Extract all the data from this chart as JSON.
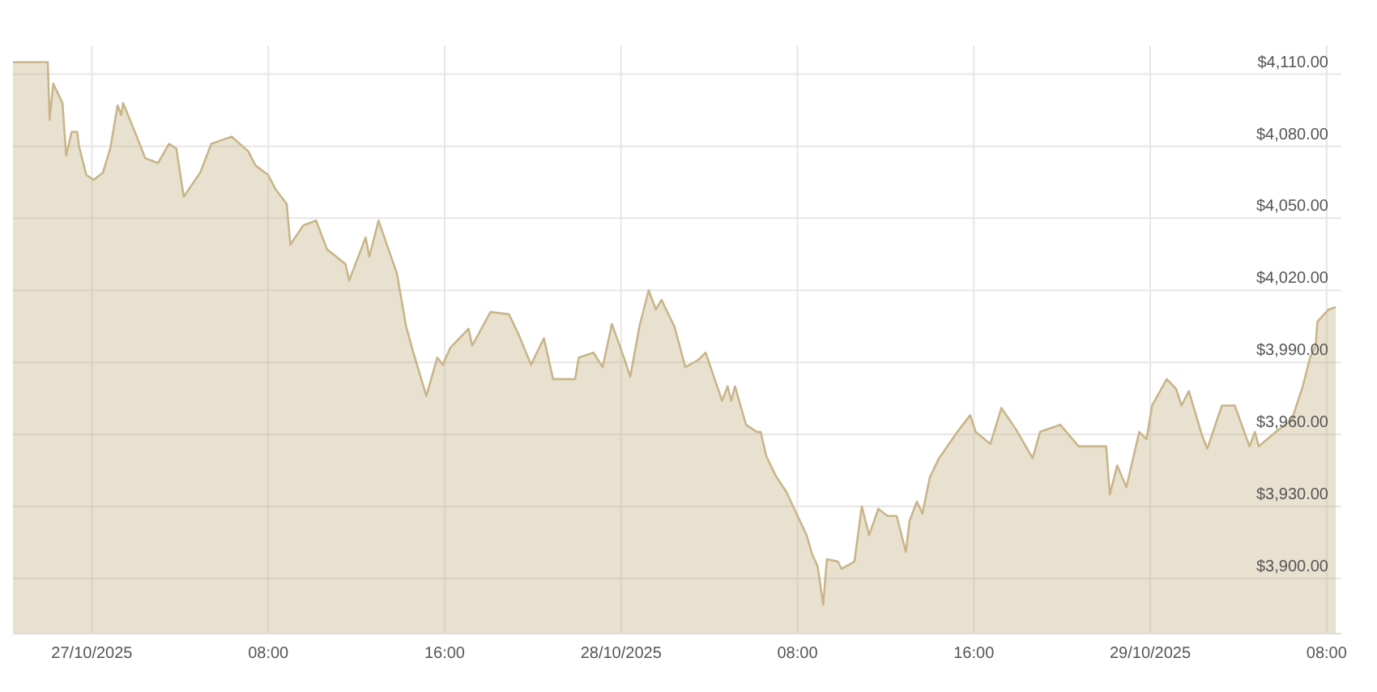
{
  "chart_data": {
    "type": "area",
    "x": [
      "2025-10-26T19:50",
      "2025-10-26T22:00",
      "2025-10-26T22:05",
      "2025-10-26T22:15",
      "2025-10-26T22:40",
      "2025-10-26T22:50",
      "2025-10-26T23:05",
      "2025-10-26T23:20",
      "2025-10-26T23:25",
      "2025-10-26T23:45",
      "2025-10-27T00:05",
      "2025-10-27T00:30",
      "2025-10-27T00:50",
      "2025-10-27T01:10",
      "2025-10-27T01:20",
      "2025-10-27T01:25",
      "2025-10-27T02:10",
      "2025-10-27T02:25",
      "2025-10-27T03:00",
      "2025-10-27T03:30",
      "2025-10-27T03:50",
      "2025-10-27T04:10",
      "2025-10-27T04:55",
      "2025-10-27T05:25",
      "2025-10-27T06:20",
      "2025-10-27T07:05",
      "2025-10-27T07:25",
      "2025-10-27T08:00",
      "2025-10-27T08:20",
      "2025-10-27T08:50",
      "2025-10-27T09:00",
      "2025-10-27T09:35",
      "2025-10-27T10:10",
      "2025-10-27T10:40",
      "2025-10-27T11:30",
      "2025-10-27T11:40",
      "2025-10-27T12:25",
      "2025-10-27T12:35",
      "2025-10-27T13:00",
      "2025-10-27T13:50",
      "2025-10-27T14:15",
      "2025-10-27T14:35",
      "2025-10-27T15:10",
      "2025-10-27T15:40",
      "2025-10-27T15:55",
      "2025-10-27T16:15",
      "2025-10-27T17:05",
      "2025-10-27T17:15",
      "2025-10-27T18:05",
      "2025-10-27T18:55",
      "2025-10-27T19:20",
      "2025-10-27T19:55",
      "2025-10-27T20:30",
      "2025-10-27T20:55",
      "2025-10-27T21:55",
      "2025-10-27T22:05",
      "2025-10-27T22:45",
      "2025-10-27T23:10",
      "2025-10-27T23:35",
      "2025-10-28T00:10",
      "2025-10-28T00:25",
      "2025-10-28T00:50",
      "2025-10-28T01:15",
      "2025-10-28T01:35",
      "2025-10-28T01:50",
      "2025-10-28T02:25",
      "2025-10-28T02:55",
      "2025-10-28T03:30",
      "2025-10-28T03:50",
      "2025-10-28T04:35",
      "2025-10-28T04:50",
      "2025-10-28T05:00",
      "2025-10-28T05:10",
      "2025-10-28T05:40",
      "2025-10-28T06:10",
      "2025-10-28T06:20",
      "2025-10-28T06:35",
      "2025-10-28T07:00",
      "2025-10-28T07:30",
      "2025-10-28T07:45",
      "2025-10-28T08:25",
      "2025-10-28T08:40",
      "2025-10-28T08:55",
      "2025-10-28T09:10",
      "2025-10-28T09:20",
      "2025-10-28T09:50",
      "2025-10-28T10:00",
      "2025-10-28T10:35",
      "2025-10-28T10:55",
      "2025-10-28T11:15",
      "2025-10-28T11:40",
      "2025-10-28T12:05",
      "2025-10-28T12:30",
      "2025-10-28T12:55",
      "2025-10-28T13:05",
      "2025-10-28T13:25",
      "2025-10-28T13:40",
      "2025-10-28T14:00",
      "2025-10-28T14:25",
      "2025-10-28T15:15",
      "2025-10-28T15:50",
      "2025-10-28T16:05",
      "2025-10-28T16:45",
      "2025-10-28T17:15",
      "2025-10-28T17:55",
      "2025-10-28T18:40",
      "2025-10-28T19:00",
      "2025-10-28T19:55",
      "2025-10-28T20:45",
      "2025-10-28T22:00",
      "2025-10-28T22:10",
      "2025-10-28T22:30",
      "2025-10-28T22:55",
      "2025-10-28T23:30",
      "2025-10-28T23:50",
      "2025-10-29T00:05",
      "2025-10-29T00:45",
      "2025-10-29T01:10",
      "2025-10-29T01:25",
      "2025-10-29T01:45",
      "2025-10-29T02:20",
      "2025-10-29T02:35",
      "2025-10-29T03:15",
      "2025-10-29T03:50",
      "2025-10-29T04:30",
      "2025-10-29T04:45",
      "2025-10-29T04:55",
      "2025-10-29T05:50",
      "2025-10-29T06:25",
      "2025-10-29T06:55",
      "2025-10-29T07:15",
      "2025-10-29T07:30",
      "2025-10-29T07:35",
      "2025-10-29T08:05",
      "2025-10-29T08:25"
    ],
    "series": [
      {
        "color": "#c9b58a",
        "values": [
          4115,
          4115,
          4091,
          4106,
          4098,
          4076,
          4086,
          4086,
          4080,
          4068,
          4066,
          4069,
          4079,
          4097,
          4093,
          4098,
          4081,
          4075,
          4073,
          4081,
          4079,
          4059,
          4069,
          4081,
          4084,
          4078,
          4072,
          4068,
          4062,
          4056,
          4039,
          4047,
          4049,
          4037,
          4031,
          4024,
          4042,
          4034,
          4049,
          4027,
          4005,
          3994,
          3976,
          3992,
          3989,
          3996,
          4004,
          3997,
          4011,
          4010,
          4002,
          3989,
          4000,
          3983,
          3983,
          3992,
          3994,
          3988,
          4006,
          3991,
          3984,
          4005,
          4020,
          4012,
          4016,
          4005,
          3988,
          3991,
          3994,
          3974,
          3980,
          3974,
          3980,
          3964,
          3961,
          3961,
          3951,
          3943,
          3936,
          3931,
          3918,
          3910,
          3905,
          3889,
          3908,
          3907,
          3904,
          3907,
          3930,
          3918,
          3929,
          3926,
          3926,
          3911,
          3924,
          3932,
          3927,
          3942,
          3950,
          3961,
          3968,
          3961,
          3956,
          3971,
          3962,
          3950,
          3961,
          3964,
          3955,
          3955,
          3935,
          3947,
          3938,
          3961,
          3958,
          3972,
          3983,
          3979,
          3972,
          3978,
          3960,
          3954,
          3972,
          3972,
          3955,
          3961,
          3955,
          3962,
          3966,
          3980,
          3992,
          3997,
          4007,
          4012,
          4013
        ]
      }
    ],
    "xlim": [
      "2025-10-26T19:50",
      "2025-10-29T08:40"
    ],
    "xticks": [
      {
        "value": "2025-10-27T00:00",
        "label": "27/10/2025"
      },
      {
        "value": "2025-10-27T08:00",
        "label": "08:00"
      },
      {
        "value": "2025-10-27T16:00",
        "label": "16:00"
      },
      {
        "value": "2025-10-28T00:00",
        "label": "28/10/2025"
      },
      {
        "value": "2025-10-28T08:00",
        "label": "08:00"
      },
      {
        "value": "2025-10-28T16:00",
        "label": "16:00"
      },
      {
        "value": "2025-10-29T00:00",
        "label": "29/10/2025"
      },
      {
        "value": "2025-10-29T08:00",
        "label": "08:00"
      }
    ],
    "ylim": [
      3877,
      4122
    ],
    "yticks": [
      {
        "value": 3900,
        "label": "$3,900.00"
      },
      {
        "value": 3930,
        "label": "$3,930.00"
      },
      {
        "value": 3960,
        "label": "$3,960.00"
      },
      {
        "value": 3990,
        "label": "$3,990.00"
      },
      {
        "value": 4020,
        "label": "$4,020.00"
      },
      {
        "value": 4050,
        "label": "$4,050.00"
      },
      {
        "value": 4080,
        "label": "$4,080.00"
      },
      {
        "value": 4110,
        "label": "$4,110.00"
      }
    ],
    "grid": true
  }
}
